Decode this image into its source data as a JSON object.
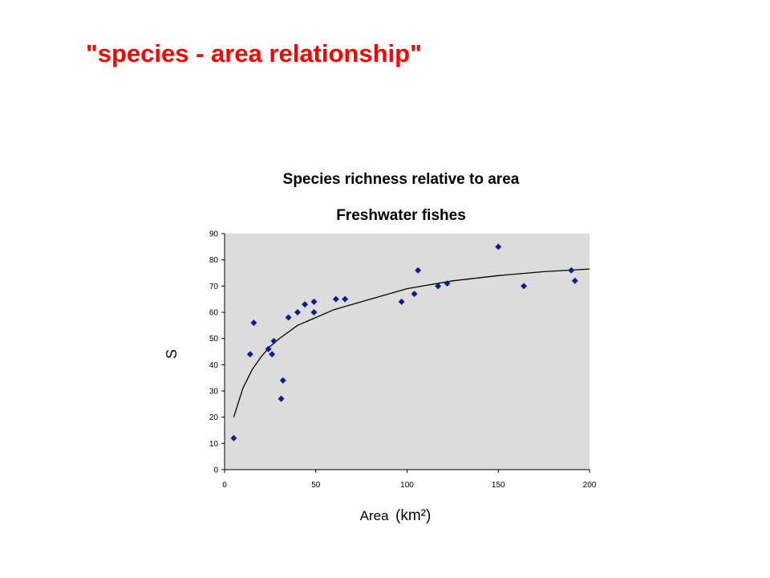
{
  "slide": {
    "title": "\"species - area relationship\""
  },
  "colors": {
    "title": "#ff0000",
    "plot_background": "#dcdcdc",
    "points": "#0a1f8f",
    "curve": "#000000"
  },
  "chart_data": {
    "type": "scatter",
    "title": "Species richness relative to area",
    "subtitle": "Freshwater fishes",
    "xlabel": "Area",
    "xlabel_unit": "(km²)",
    "ylabel": "S",
    "xlim": [
      0,
      200
    ],
    "ylim": [
      0,
      90
    ],
    "xticks": [
      0,
      50,
      100,
      150,
      200
    ],
    "yticks": [
      0,
      10,
      20,
      30,
      40,
      50,
      60,
      70,
      80,
      90
    ],
    "grid": false,
    "legend": "none",
    "series": [
      {
        "marker": "diamond",
        "points": [
          [
            5,
            12
          ],
          [
            14,
            44
          ],
          [
            16,
            56
          ],
          [
            24,
            46
          ],
          [
            26,
            44
          ],
          [
            27,
            49
          ],
          [
            31,
            27
          ],
          [
            32,
            34
          ],
          [
            35,
            58
          ],
          [
            40,
            60
          ],
          [
            44,
            63
          ],
          [
            49,
            60
          ],
          [
            49,
            64
          ],
          [
            61,
            65
          ],
          [
            66,
            65
          ],
          [
            97,
            64
          ],
          [
            104,
            67
          ],
          [
            106,
            76
          ],
          [
            117,
            70
          ],
          [
            122,
            71
          ],
          [
            150,
            85
          ],
          [
            164,
            70
          ],
          [
            190,
            76
          ],
          [
            192,
            72
          ]
        ]
      }
    ],
    "fit_curve": {
      "points": [
        [
          5,
          20
        ],
        [
          10,
          31
        ],
        [
          15,
          38
        ],
        [
          20,
          43
        ],
        [
          25,
          47
        ],
        [
          30,
          50
        ],
        [
          40,
          55
        ],
        [
          50,
          58
        ],
        [
          60,
          61
        ],
        [
          75,
          64
        ],
        [
          100,
          69
        ],
        [
          125,
          72
        ],
        [
          150,
          74
        ],
        [
          175,
          75.5
        ],
        [
          200,
          76.5
        ]
      ]
    }
  }
}
